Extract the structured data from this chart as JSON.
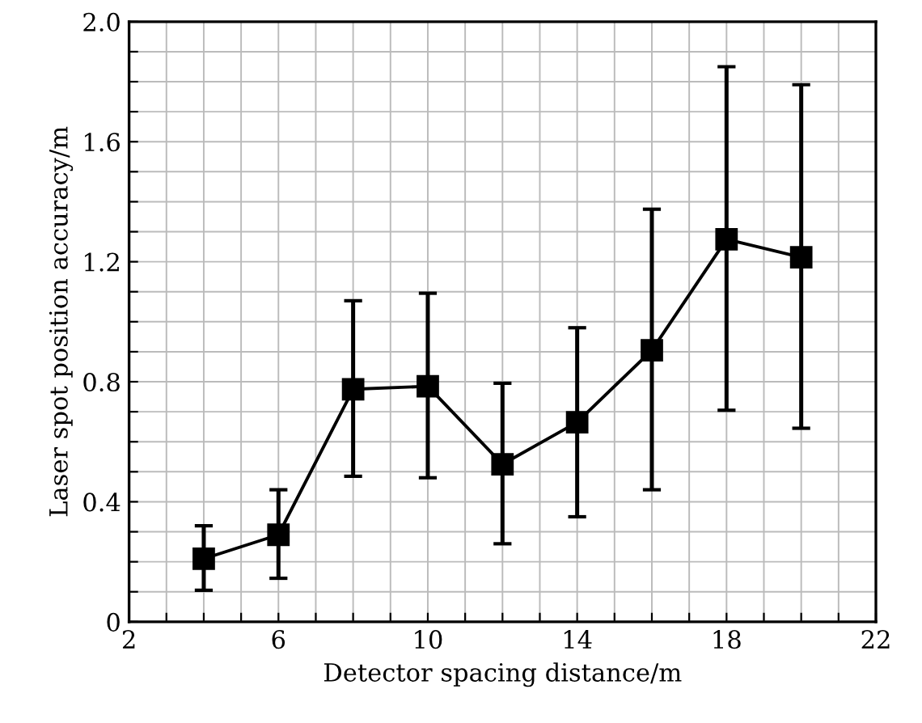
{
  "chart_data": {
    "type": "line",
    "xlabel": "Detector spacing distance/m",
    "ylabel": "Laser spot position accuracy/m",
    "x": [
      4,
      6,
      8,
      10,
      12,
      14,
      16,
      18,
      20
    ],
    "series": [
      {
        "color": "#000000",
        "values": [
          0.21,
          0.29,
          0.775,
          0.785,
          0.525,
          0.665,
          0.905,
          1.275,
          1.215
        ],
        "errors": [
          [
            0.105,
            0.32
          ],
          [
            0.145,
            0.44
          ],
          [
            0.485,
            1.07
          ],
          [
            0.48,
            1.095
          ],
          [
            0.26,
            0.795
          ],
          [
            0.35,
            0.98
          ],
          [
            0.44,
            1.375
          ],
          [
            0.705,
            1.85
          ],
          [
            0.645,
            1.79
          ]
        ]
      }
    ],
    "xlim": [
      2,
      22
    ],
    "xticks": [
      2,
      {
        "value": 3,
        "label": null
      },
      {
        "value": 4,
        "label": null
      },
      {
        "value": 5,
        "label": null
      },
      6,
      {
        "value": 7,
        "label": null
      },
      {
        "value": 8,
        "label": null
      },
      {
        "value": 9,
        "label": null
      },
      10,
      {
        "value": 11,
        "label": null
      },
      {
        "value": 12,
        "label": null
      },
      {
        "value": 13,
        "label": null
      },
      14,
      {
        "value": 15,
        "label": null
      },
      {
        "value": 16,
        "label": null
      },
      {
        "value": 17,
        "label": null
      },
      18,
      {
        "value": 19,
        "label": null
      },
      {
        "value": 20,
        "label": null
      },
      {
        "value": 21,
        "label": null
      },
      22
    ],
    "ylim": [
      0,
      2.0
    ],
    "yticks": [
      0,
      {
        "value": 0.1,
        "label": null
      },
      {
        "value": 0.2,
        "label": null
      },
      {
        "value": 0.3,
        "label": null
      },
      0.4,
      {
        "value": 0.5,
        "label": null
      },
      {
        "value": 0.6,
        "label": null
      },
      {
        "value": 0.7,
        "label": null
      },
      0.8,
      {
        "value": 0.9,
        "label": null
      },
      {
        "value": 1.0,
        "label": null
      },
      {
        "value": 1.1,
        "label": null
      },
      1.2,
      {
        "value": 1.3,
        "label": null
      },
      {
        "value": 1.4,
        "label": null
      },
      {
        "value": 1.5,
        "label": null
      },
      1.6,
      {
        "value": 1.7,
        "label": null
      },
      {
        "value": 1.8,
        "label": null
      },
      {
        "value": 1.9,
        "label": null
      },
      {
        "value": 2.0,
        "label": "2.0"
      }
    ],
    "grid": true,
    "marker": "square",
    "line_style": "solid"
  }
}
